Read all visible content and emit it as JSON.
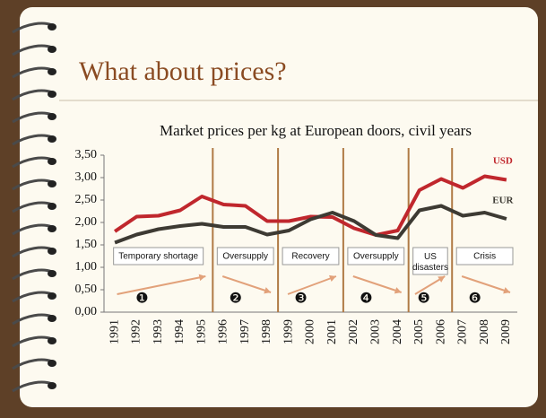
{
  "slide_title": "What about prices?",
  "chart_data": {
    "type": "line",
    "title": "Market prices per kg at European doors, civil years",
    "categories": [
      "1991",
      "1992",
      "1993",
      "1994",
      "1995",
      "1996",
      "1997",
      "1998",
      "1999",
      "2000",
      "2001",
      "2002",
      "2003",
      "2004",
      "2005",
      "2006",
      "2007",
      "2008",
      "2009"
    ],
    "series": [
      {
        "name": "USD",
        "color": "#c0272d",
        "values": [
          1.8,
          2.13,
          2.15,
          2.27,
          2.58,
          2.4,
          2.37,
          2.03,
          2.03,
          2.13,
          2.12,
          1.87,
          1.72,
          1.82,
          2.72,
          2.97,
          2.77,
          3.03,
          2.95
        ]
      },
      {
        "name": "EUR",
        "color": "#3d3a33",
        "values": [
          1.55,
          1.73,
          1.85,
          1.92,
          1.97,
          1.9,
          1.9,
          1.73,
          1.82,
          2.07,
          2.22,
          2.03,
          1.72,
          1.65,
          2.27,
          2.37,
          2.15,
          2.22,
          2.08
        ]
      }
    ],
    "ylim": [
      0,
      3.5
    ],
    "yticks": [
      {
        "value": 0,
        "label": "0,00"
      },
      {
        "value": 0.5,
        "label": "0,50"
      },
      {
        "value": 1,
        "label": "1,00"
      },
      {
        "value": 1.5,
        "label": "1,50"
      },
      {
        "value": 2,
        "label": "2,00"
      },
      {
        "value": 2.5,
        "label": "2,50"
      },
      {
        "value": 3,
        "label": "3,00"
      },
      {
        "value": 3.5,
        "label": "3,50"
      }
    ],
    "phases": [
      {
        "label": "Temporary shortage",
        "marker": "❶"
      },
      {
        "label": "Oversupply",
        "marker": "❷"
      },
      {
        "label": "Recovery",
        "marker": "❸"
      },
      {
        "label": "Oversupply",
        "marker": "❹"
      },
      {
        "label": "US disasters",
        "marker": "❺"
      },
      {
        "label": "Crisis",
        "marker": "❻"
      }
    ]
  }
}
